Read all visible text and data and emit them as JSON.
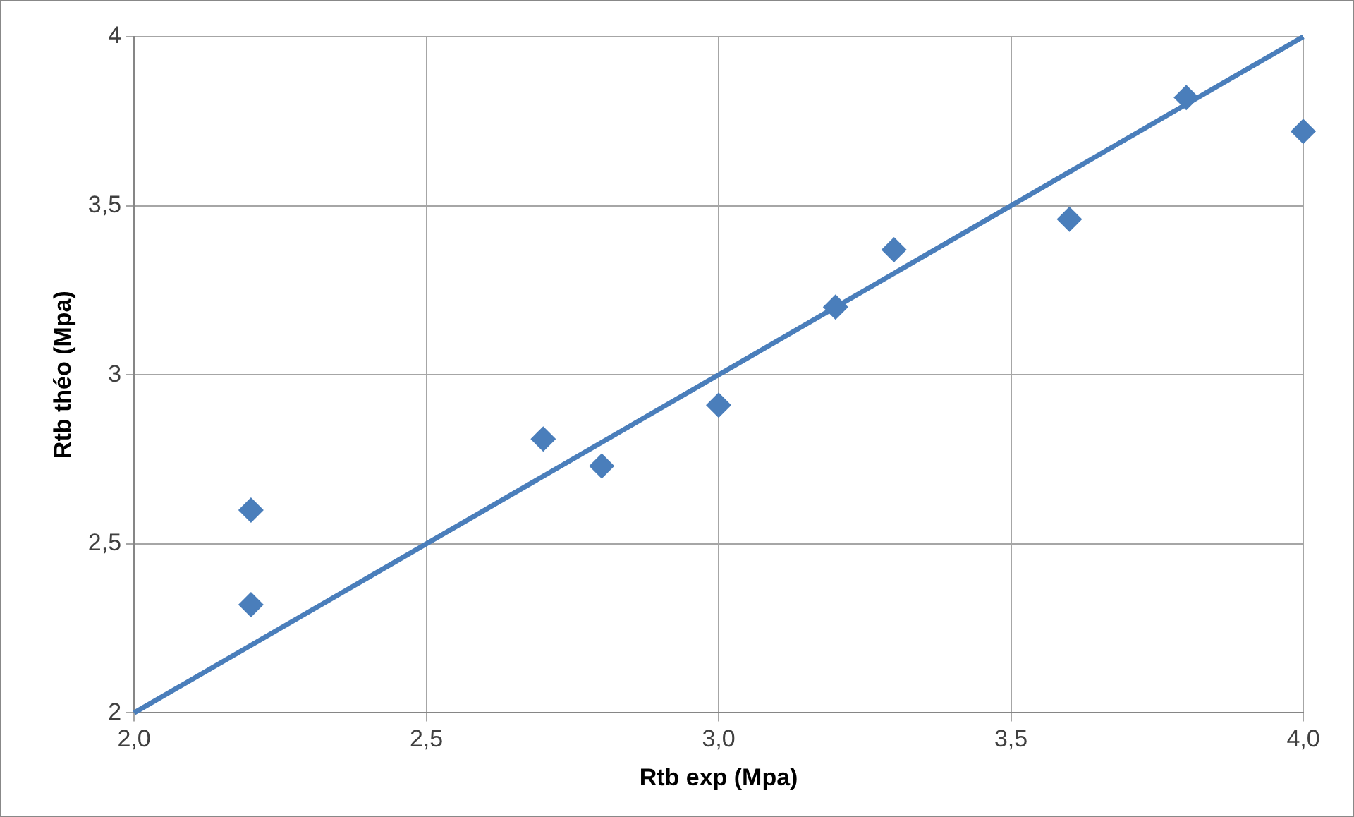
{
  "chart_data": {
    "type": "scatter",
    "xlabel": "Rtb exp (Mpa)",
    "ylabel": "Rtb théo (Mpa)",
    "xlim": [
      2,
      4
    ],
    "xticks": [
      {
        "value": 2,
        "label": "2,0"
      },
      {
        "value": 2.5,
        "label": "2,5"
      },
      {
        "value": 3,
        "label": "3,0"
      },
      {
        "value": 3.5,
        "label": "3,5"
      },
      {
        "value": 4,
        "label": "4,0"
      }
    ],
    "ylim": [
      2,
      4
    ],
    "yticks": [
      2,
      {
        "value": 2.5,
        "label": "2,5"
      },
      3,
      {
        "value": 3.5,
        "label": "3,5"
      },
      4
    ],
    "grid": true,
    "legend": false,
    "series": [
      {
        "type": "scatter",
        "marker": "diamond",
        "color": "#4a7ebb",
        "x": [
          2.2,
          2.2,
          2.7,
          2.8,
          3.0,
          3.2,
          3.3,
          3.6,
          3.8,
          4.0
        ],
        "values": [
          2.6,
          2.32,
          2.81,
          2.73,
          2.91,
          3.2,
          3.37,
          3.46,
          3.82,
          3.72
        ]
      },
      {
        "type": "line",
        "marker": "none",
        "color": "#4a7ebb",
        "x": [
          2,
          4
        ],
        "values": [
          2,
          4
        ]
      }
    ]
  }
}
